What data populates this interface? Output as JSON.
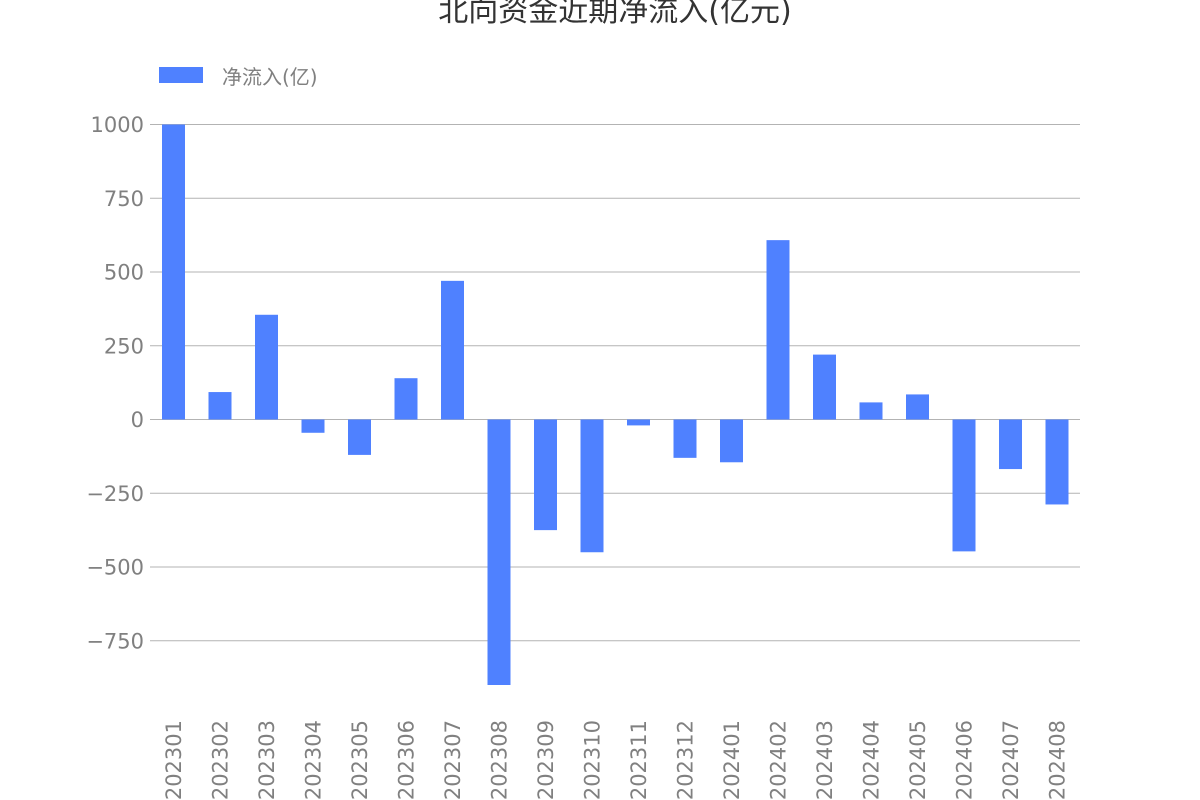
{
  "chart_data": {
    "type": "bar",
    "title": "北向资金近期净流入(亿元)",
    "xlabel": "",
    "ylabel": "",
    "categories": [
      "202301",
      "202302",
      "202303",
      "202304",
      "202305",
      "202306",
      "202307",
      "202308",
      "202309",
      "202310",
      "202311",
      "202312",
      "202401",
      "202402",
      "202403",
      "202404",
      "202405",
      "202406",
      "202407",
      "202408"
    ],
    "series": [
      {
        "name": "净流入(亿)",
        "color": "#4f81ff",
        "values": [
          1000,
          93,
          355,
          -45,
          -120,
          140,
          470,
          -900,
          -375,
          -450,
          -20,
          -130,
          -145,
          608,
          220,
          58,
          85,
          -447,
          -168,
          -288
        ]
      }
    ],
    "yticks": [
      1000,
      750,
      500,
      250,
      0,
      -250,
      -500,
      -750
    ],
    "ylim": [
      -910,
      1000
    ],
    "grid": true,
    "legend_position": "top-left"
  }
}
